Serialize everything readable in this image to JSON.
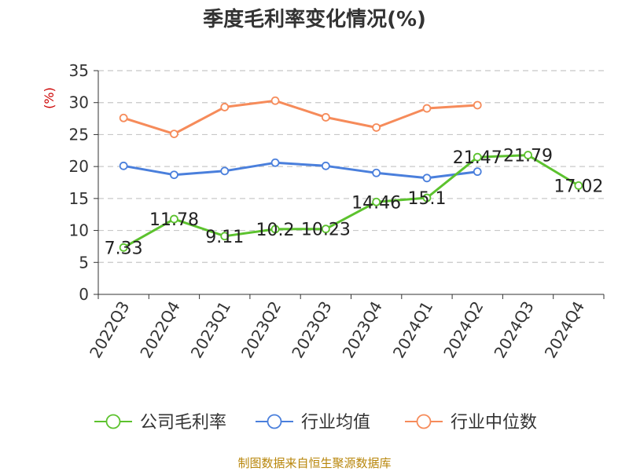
{
  "chart_data": {
    "type": "line",
    "title": "季度毛利率变化情况(%)",
    "ylabel": "(%)",
    "xlabel": "",
    "ylim": [
      0,
      35
    ],
    "yticks": [
      0,
      5,
      10,
      15,
      20,
      25,
      30,
      35
    ],
    "grid": true,
    "legend_position": "bottom",
    "categories": [
      "2022Q3",
      "2022Q4",
      "2023Q1",
      "2023Q2",
      "2023Q3",
      "2023Q4",
      "2024Q1",
      "2024Q2",
      "2024Q3",
      "2024Q4"
    ],
    "series": [
      {
        "name": "公司毛利率",
        "color": "#5cc22e",
        "values": [
          7.33,
          11.78,
          9.11,
          10.2,
          10.23,
          14.46,
          15.1,
          21.47,
          21.79,
          17.02
        ],
        "data_labels": [
          "7.33",
          "11.78",
          "9.11",
          "10.2",
          "10.23",
          "14.46",
          "15.1",
          "21.47",
          "21.79",
          "17.02"
        ]
      },
      {
        "name": "行业均值",
        "color": "#4a7fdc",
        "values": [
          20.1,
          18.7,
          19.3,
          20.6,
          20.1,
          19.0,
          18.2,
          19.2,
          null,
          null
        ]
      },
      {
        "name": "行业中位数",
        "color": "#f68b5a",
        "values": [
          27.6,
          25.1,
          29.3,
          30.3,
          27.7,
          26.1,
          29.1,
          29.6,
          null,
          null
        ]
      }
    ]
  },
  "source": "制图数据来自恒生聚源数据库"
}
